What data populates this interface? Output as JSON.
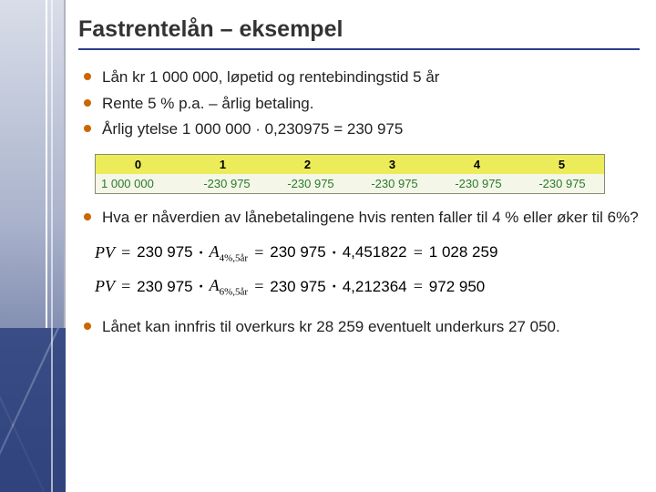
{
  "title": "Fastrentelån – eksempel",
  "bullets_top": [
    "Lån kr 1 000 000, løpetid og rentebindingstid 5 år",
    "Rente 5 % p.a. – årlig betaling.",
    "Årlig ytelse 1 000 000 · 0,230975 = 230 975"
  ],
  "cashflow": {
    "header_color": "#ecec5a",
    "body_bg": "#f4f6e8",
    "periods": [
      "0",
      "1",
      "2",
      "3",
      "4",
      "5"
    ],
    "values": [
      "1 000 000",
      "-230 975",
      "-230 975",
      "-230 975",
      "-230 975",
      "-230 975"
    ]
  },
  "bullet_middle": "Hva er nåverdien av lånebetalingene hvis renten faller til 4 % eller øker til 6%?",
  "formula1": {
    "pv": "PV",
    "eq": "=",
    "payment": "230 975",
    "annuity_label": "A",
    "annuity_sub": "4%,5år",
    "factor": "4,451822",
    "result": "1  028 259"
  },
  "formula2": {
    "pv": "PV",
    "eq": "=",
    "payment": "230 975",
    "annuity_label": "A",
    "annuity_sub": "6%,5år",
    "factor": "4,212364",
    "result": "972 950"
  },
  "bullet_bottom": "Lånet kan innfris til overkurs kr 28 259 eventuelt underkurs 27 050.",
  "colors": {
    "title_underline": "#2a3f8f",
    "bullet_color": "#cc6600",
    "text": "#222222",
    "cashflow_value": "#2a7a2a"
  }
}
